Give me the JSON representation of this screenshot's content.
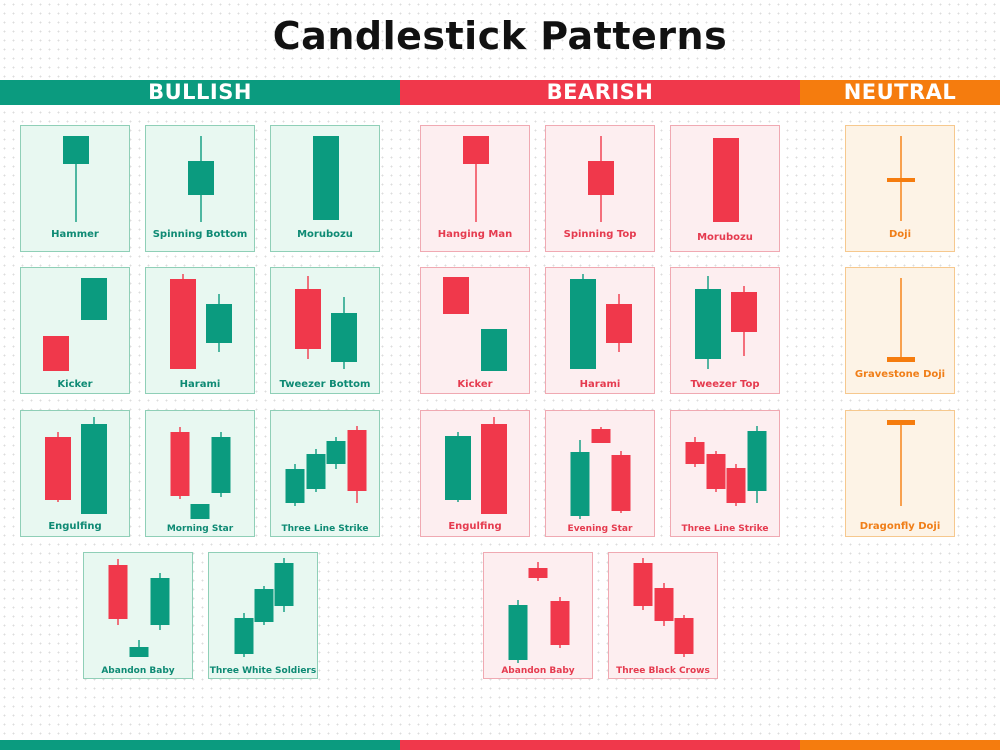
{
  "title": "Candlestick Patterns",
  "colors": {
    "bull": "#0b9b7f",
    "bear": "#f0384b",
    "neutral": "#f57c0e"
  },
  "sections": {
    "bullish": "BULLISH",
    "bearish": "BEARISH",
    "neutral": "NEUTRAL"
  },
  "cards": [
    {
      "label": "Hammer",
      "group": "bull"
    },
    {
      "label": "Spinning Bottom",
      "group": "bull"
    },
    {
      "label": "Morubozu",
      "group": "bull"
    },
    {
      "label": "Kicker",
      "group": "bull"
    },
    {
      "label": "Harami",
      "group": "bull"
    },
    {
      "label": "Tweezer Bottom",
      "group": "bull"
    },
    {
      "label": "Engulfing",
      "group": "bull"
    },
    {
      "label": "Morning Star",
      "group": "bull"
    },
    {
      "label": "Three Line Strike",
      "group": "bull"
    },
    {
      "label": "Abandon Baby",
      "group": "bull"
    },
    {
      "label": "Three White Soldiers",
      "group": "bull"
    },
    {
      "label": "Hanging Man",
      "group": "bear"
    },
    {
      "label": "Spinning Top",
      "group": "bear"
    },
    {
      "label": "Morubozu",
      "group": "bear"
    },
    {
      "label": "Kicker",
      "group": "bear"
    },
    {
      "label": "Harami",
      "group": "bear"
    },
    {
      "label": "Tweezer Top",
      "group": "bear"
    },
    {
      "label": "Engulfing",
      "group": "bear"
    },
    {
      "label": "Evening Star",
      "group": "bear"
    },
    {
      "label": "Three Line Strike",
      "group": "bear"
    },
    {
      "label": "Abandon Baby",
      "group": "bear"
    },
    {
      "label": "Three Black Crows",
      "group": "bear"
    },
    {
      "label": "Doji",
      "group": "neutral"
    },
    {
      "label": "Gravestone Doji",
      "group": "neutral"
    },
    {
      "label": "Dragonfly Doji",
      "group": "neutral"
    }
  ]
}
